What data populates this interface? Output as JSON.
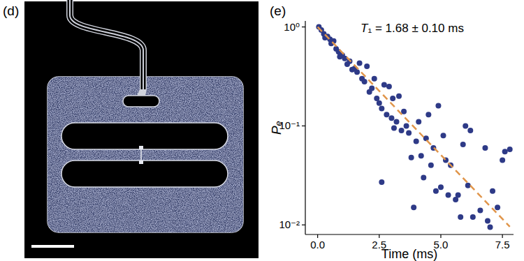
{
  "device_image": {
    "label": "(d)"
  },
  "chart_data": {
    "type": "scatter",
    "title": "(e)",
    "annotation": "T₁ = 1.68 ± 0.10 ms",
    "x_label": "Time (ms)",
    "y_label": "Pₑ",
    "log": "y",
    "grid": false,
    "xlim": [
      -0.5,
      7.95
    ],
    "ylim": [
      0.008,
      1.15
    ],
    "xticks": [
      {
        "value": 0,
        "label": "0.0"
      },
      2.5,
      {
        "value": 5,
        "label": "5.0"
      },
      7.5
    ],
    "yticks": [
      {
        "value": 0.01,
        "label": "10⁻²"
      },
      {
        "value": 0.1,
        "label": "10⁻¹"
      },
      {
        "value": 1,
        "label": "10⁰"
      }
    ],
    "series": [
      {
        "type": "scatter",
        "color": "#2e3a87",
        "marker": "circle",
        "x": [
          0.05,
          0.15,
          0.25,
          0.3,
          0.4,
          0.5,
          0.55,
          0.65,
          0.75,
          0.85,
          0.9,
          1.0,
          1.1,
          1.2,
          1.3,
          1.4,
          1.5,
          1.6,
          1.7,
          1.8,
          1.9,
          2.0,
          2.1,
          2.2,
          2.3,
          2.4,
          2.5,
          2.6,
          2.6,
          2.7,
          2.8,
          2.9,
          3.0,
          3.05,
          3.1,
          3.2,
          3.3,
          3.4,
          3.5,
          3.6,
          3.7,
          3.8,
          3.9,
          4.0,
          4.1,
          4.2,
          4.3,
          4.4,
          4.5,
          4.6,
          4.7,
          4.8,
          4.9,
          5.0,
          5.1,
          5.2,
          5.3,
          5.4,
          5.6,
          5.7,
          5.8,
          5.9,
          6.0,
          6.1,
          6.2,
          6.3,
          6.6,
          6.8,
          6.9,
          7.0,
          7.1,
          7.3,
          7.5,
          7.6,
          7.8
        ],
        "values": [
          1.0,
          0.93,
          0.85,
          0.78,
          0.8,
          0.75,
          0.68,
          0.72,
          0.6,
          0.56,
          0.5,
          0.52,
          0.48,
          0.42,
          0.45,
          0.37,
          0.38,
          0.35,
          0.43,
          0.3,
          0.28,
          0.4,
          0.22,
          0.24,
          0.3,
          0.19,
          0.17,
          0.15,
          0.027,
          0.26,
          0.13,
          0.25,
          0.12,
          0.19,
          0.095,
          0.11,
          0.2,
          0.09,
          0.14,
          0.1,
          0.085,
          0.048,
          0.015,
          0.07,
          0.11,
          0.05,
          0.03,
          0.075,
          0.13,
          0.04,
          0.06,
          0.022,
          0.16,
          0.024,
          0.08,
          0.045,
          0.02,
          0.04,
          0.018,
          0.02,
          0.012,
          0.065,
          0.1,
          0.025,
          0.09,
          0.012,
          0.014,
          0.06,
          0.011,
          0.0095,
          0.022,
          0.015,
          0.045,
          0.055,
          0.058
        ]
      },
      {
        "type": "line",
        "color": "#e0954a",
        "line_style": "dashed",
        "x": [
          0,
          7.8
        ],
        "values": [
          1.0,
          0.0096
        ]
      }
    ]
  }
}
